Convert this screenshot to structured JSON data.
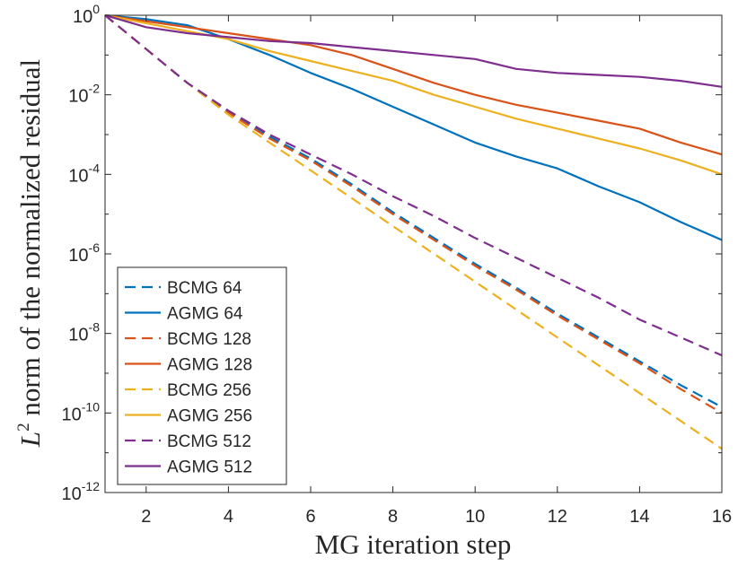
{
  "chart_data": {
    "type": "line",
    "title": "",
    "xlabel": "MG iteration step",
    "ylabel_symbol": "L",
    "ylabel_exponent": "2",
    "ylabel_rest": "norm of the normalized residual",
    "yscale": "log",
    "xlim": [
      1,
      16
    ],
    "ylim_exponent": [
      -12,
      0
    ],
    "xticks": [
      2,
      4,
      6,
      8,
      10,
      12,
      14,
      16
    ],
    "yticks": [
      {
        "exp": 0,
        "base": "10",
        "power": "0"
      },
      {
        "exp": -2,
        "base": "10",
        "power": "-2"
      },
      {
        "exp": -4,
        "base": "10",
        "power": "-4"
      },
      {
        "exp": -6,
        "base": "10",
        "power": "-6"
      },
      {
        "exp": -8,
        "base": "10",
        "power": "-8"
      },
      {
        "exp": -10,
        "base": "10",
        "power": "-10"
      },
      {
        "exp": -12,
        "base": "10",
        "power": "-12"
      }
    ],
    "x": [
      1,
      2,
      3,
      4,
      5,
      6,
      7,
      8,
      9,
      10,
      11,
      12,
      13,
      14,
      15,
      16
    ],
    "legend_position": "bottom-left",
    "series": [
      {
        "name": "BCMG 64",
        "color": "#0072BD",
        "dash": "dashed",
        "log10_values": [
          0,
          -0.85,
          -1.7,
          -2.4,
          -3.05,
          -3.6,
          -4.25,
          -4.95,
          -5.6,
          -6.25,
          -6.85,
          -7.5,
          -8.1,
          -8.7,
          -9.3,
          -9.85
        ]
      },
      {
        "name": "AGMG 64",
        "color": "#0072BD",
        "dash": "solid",
        "log10_values": [
          0,
          -0.1,
          -0.25,
          -0.6,
          -1.0,
          -1.45,
          -1.85,
          -2.3,
          -2.75,
          -3.2,
          -3.55,
          -3.85,
          -4.3,
          -4.7,
          -5.2,
          -5.65
        ]
      },
      {
        "name": "BCMG 128",
        "color": "#D95319",
        "dash": "dashed",
        "log10_values": [
          0,
          -0.85,
          -1.7,
          -2.45,
          -3.1,
          -3.65,
          -4.3,
          -5.0,
          -5.65,
          -6.3,
          -6.9,
          -7.55,
          -8.15,
          -8.75,
          -9.4,
          -10.0
        ]
      },
      {
        "name": "AGMG 128",
        "color": "#D95319",
        "dash": "solid",
        "log10_values": [
          0,
          -0.15,
          -0.3,
          -0.45,
          -0.6,
          -0.75,
          -1.0,
          -1.35,
          -1.7,
          -2.0,
          -2.25,
          -2.45,
          -2.65,
          -2.85,
          -3.2,
          -3.5
        ]
      },
      {
        "name": "BCMG 256",
        "color": "#EDB120",
        "dash": "dashed",
        "log10_values": [
          0,
          -0.85,
          -1.7,
          -2.5,
          -3.2,
          -3.9,
          -4.6,
          -5.3,
          -6.0,
          -6.7,
          -7.4,
          -8.1,
          -8.8,
          -9.5,
          -10.2,
          -10.9
        ]
      },
      {
        "name": "AGMG 256",
        "color": "#EDB120",
        "dash": "solid",
        "log10_values": [
          0,
          -0.2,
          -0.4,
          -0.6,
          -0.9,
          -1.15,
          -1.4,
          -1.65,
          -2.0,
          -2.3,
          -2.6,
          -2.85,
          -3.1,
          -3.35,
          -3.65,
          -4.0
        ]
      },
      {
        "name": "BCMG 512",
        "color": "#7E2F8E",
        "dash": "dashed",
        "log10_values": [
          0,
          -0.85,
          -1.7,
          -2.4,
          -3.0,
          -3.5,
          -4.0,
          -4.55,
          -5.05,
          -5.6,
          -6.1,
          -6.6,
          -7.1,
          -7.65,
          -8.1,
          -8.55
        ]
      },
      {
        "name": "AGMG 512",
        "color": "#7E2F8E",
        "dash": "solid",
        "log10_values": [
          0,
          -0.3,
          -0.45,
          -0.55,
          -0.65,
          -0.7,
          -0.8,
          -0.9,
          -1.0,
          -1.1,
          -1.35,
          -1.45,
          -1.5,
          -1.55,
          -1.65,
          -1.8
        ]
      }
    ]
  }
}
